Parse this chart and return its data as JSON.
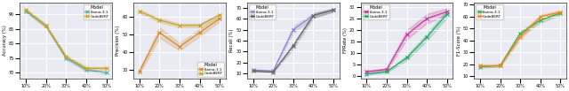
{
  "x_labels": [
    "10%",
    "20%",
    "30%",
    "40%",
    "50%"
  ],
  "x_vals": [
    10,
    20,
    30,
    40,
    50
  ],
  "plots": [
    {
      "key": "accuracy",
      "ylabel": "Accuracy (%)",
      "ylim": [
        68,
        94
      ],
      "yticks": [
        70,
        75,
        80,
        85,
        90
      ],
      "llama": [
        91,
        86,
        75,
        71,
        70
      ],
      "codebert": [
        91.5,
        86,
        75.5,
        71.5,
        71.5
      ],
      "llama_std": [
        0.4,
        0.6,
        0.5,
        0.5,
        0.4
      ],
      "codebert_std": [
        0.4,
        0.5,
        0.5,
        0.5,
        0.5
      ],
      "llama_color": "#5BAD9E",
      "codebert_color": "#D4A020",
      "legend_loc": "upper right"
    },
    {
      "key": "precision",
      "ylabel": "Precision (%)",
      "ylim": [
        25,
        68
      ],
      "yticks": [
        30,
        40,
        50,
        60
      ],
      "llama": [
        29,
        51,
        43,
        51,
        59
      ],
      "codebert": [
        63,
        58,
        55,
        55,
        61
      ],
      "llama_std": [
        1.5,
        3.0,
        2.0,
        2.0,
        1.5
      ],
      "codebert_std": [
        1.0,
        1.2,
        1.0,
        1.0,
        1.0
      ],
      "llama_color": "#D4882A",
      "codebert_color": "#C8A028",
      "legend_loc": "lower right"
    },
    {
      "key": "recall",
      "ylabel": "Recall (%)",
      "ylim": [
        5,
        75
      ],
      "yticks": [
        10,
        20,
        30,
        40,
        50,
        60,
        70
      ],
      "llama": [
        13,
        12,
        50,
        63,
        68
      ],
      "codebert": [
        12,
        11,
        35,
        63,
        68
      ],
      "llama_std": [
        0.5,
        0.5,
        3.0,
        2.0,
        1.5
      ],
      "codebert_std": [
        0.5,
        0.5,
        2.5,
        2.0,
        1.5
      ],
      "llama_color": "#8888CC",
      "codebert_color": "#666666",
      "legend_loc": "upper left"
    },
    {
      "key": "fpr",
      "ylabel": "FPRate (%)",
      "ylim": [
        -1,
        32
      ],
      "yticks": [
        0,
        5,
        10,
        15,
        20,
        25,
        30
      ],
      "llama": [
        2,
        3,
        18,
        25,
        28
      ],
      "codebert": [
        1,
        2,
        8,
        17,
        27
      ],
      "llama_std": [
        0.4,
        0.5,
        2.0,
        2.0,
        1.5
      ],
      "codebert_std": [
        0.3,
        0.4,
        1.0,
        1.5,
        1.5
      ],
      "llama_color": "#CC3399",
      "codebert_color": "#22AA66",
      "legend_loc": "upper left"
    },
    {
      "key": "f1",
      "ylabel": "F1-Score (%)",
      "ylim": [
        8,
        72
      ],
      "yticks": [
        10,
        20,
        30,
        40,
        50,
        60,
        70
      ],
      "llama": [
        18,
        19,
        46,
        57,
        63
      ],
      "codebert": [
        19,
        19,
        43,
        60,
        64
      ],
      "llama_std": [
        0.8,
        1.0,
        2.0,
        2.0,
        1.5
      ],
      "codebert_std": [
        0.8,
        1.0,
        2.0,
        1.5,
        1.5
      ],
      "llama_color": "#44AA44",
      "codebert_color": "#EE8822",
      "legend_loc": "upper left"
    }
  ],
  "bg_color": "#EAEAF2",
  "grid_color": "white"
}
